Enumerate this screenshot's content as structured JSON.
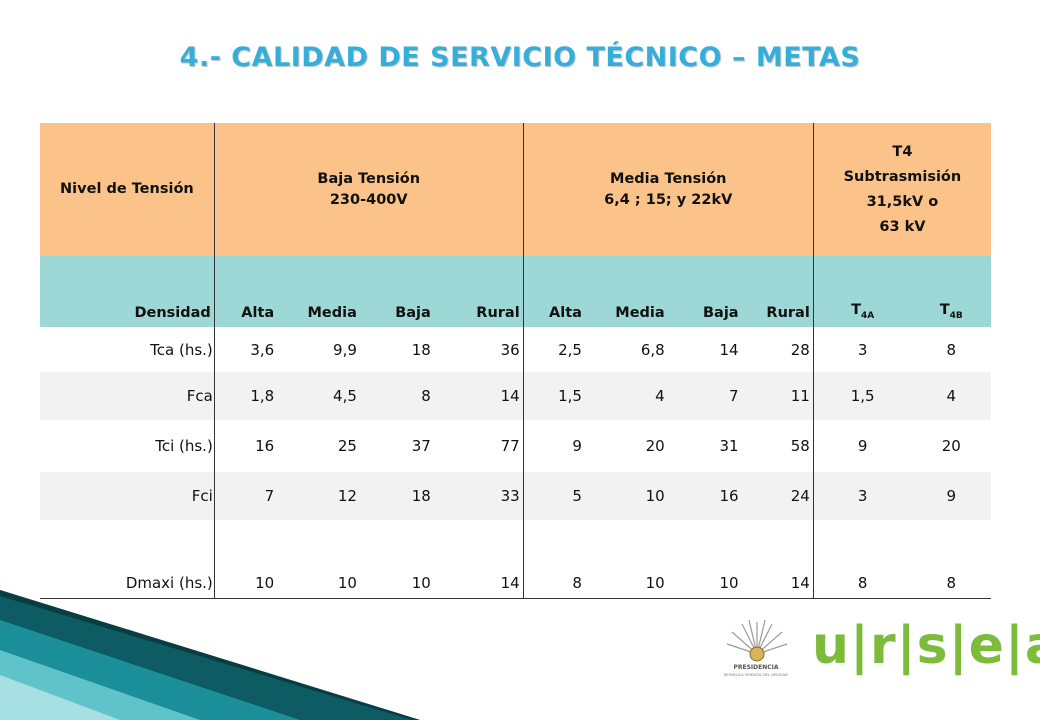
{
  "title": "4.- CALIDAD DE SERVICIO TÉCNICO – METAS",
  "header": {
    "nivel": "Nivel de Tensión",
    "baja_line1": "Baja Tensión",
    "baja_line2": "230-400V",
    "media_line1": "Media Tensión",
    "media_line2": "6,4 ; 15; y 22kV",
    "t4_line1": "T4",
    "t4_line2": "Subtrasmisión",
    "t4_line3": "31,5kV o",
    "t4_line4": "63 kV"
  },
  "subheader": {
    "densidad": "Densidad",
    "bt_cols": [
      "Alta",
      "Media",
      "Baja",
      "Rural"
    ],
    "mt_cols": [
      "Alta",
      "Media",
      "Baja",
      "Rural"
    ],
    "t4a_main": "T",
    "t4a_sub": "4A",
    "t4b_main": "T",
    "t4b_sub": "4B"
  },
  "rows": [
    {
      "label": "Tca (hs.)",
      "values": [
        "3,6",
        "9,9",
        "18",
        "36",
        "2,5",
        "6,8",
        "14",
        "28",
        "3",
        "8"
      ]
    },
    {
      "label": "Fca",
      "values": [
        "1,8",
        "4,5",
        "8",
        "14",
        "1,5",
        "4",
        "7",
        "11",
        "1,5",
        "4"
      ]
    },
    {
      "label": "Tci (hs.)",
      "values": [
        "16",
        "25",
        "37",
        "77",
        "9",
        "20",
        "31",
        "58",
        "9",
        "20"
      ]
    },
    {
      "label": "Fci",
      "values": [
        "7",
        "12",
        "18",
        "33",
        "5",
        "10",
        "16",
        "24",
        "3",
        "9"
      ]
    },
    {
      "label": "Dmaxi (hs.)",
      "values": [
        "10",
        "10",
        "10",
        "14",
        "8",
        "10",
        "10",
        "14",
        "8",
        "8"
      ]
    }
  ],
  "logo": {
    "seal_text": "PRESIDENCIA",
    "seal_subtext": "REPÚBLICA ORIENTAL DEL URUGUAY",
    "brand": "u|r|s|e|a"
  },
  "colors": {
    "title": "#34aedb",
    "header_bg": "#fbc389",
    "subheader_bg": "#9ed8d6",
    "alt_row": "#f2f2f2",
    "brand_green": "#7dbb3a",
    "ribbon_dark": "#0d5c64",
    "ribbon_light": "#5fc3c9"
  }
}
